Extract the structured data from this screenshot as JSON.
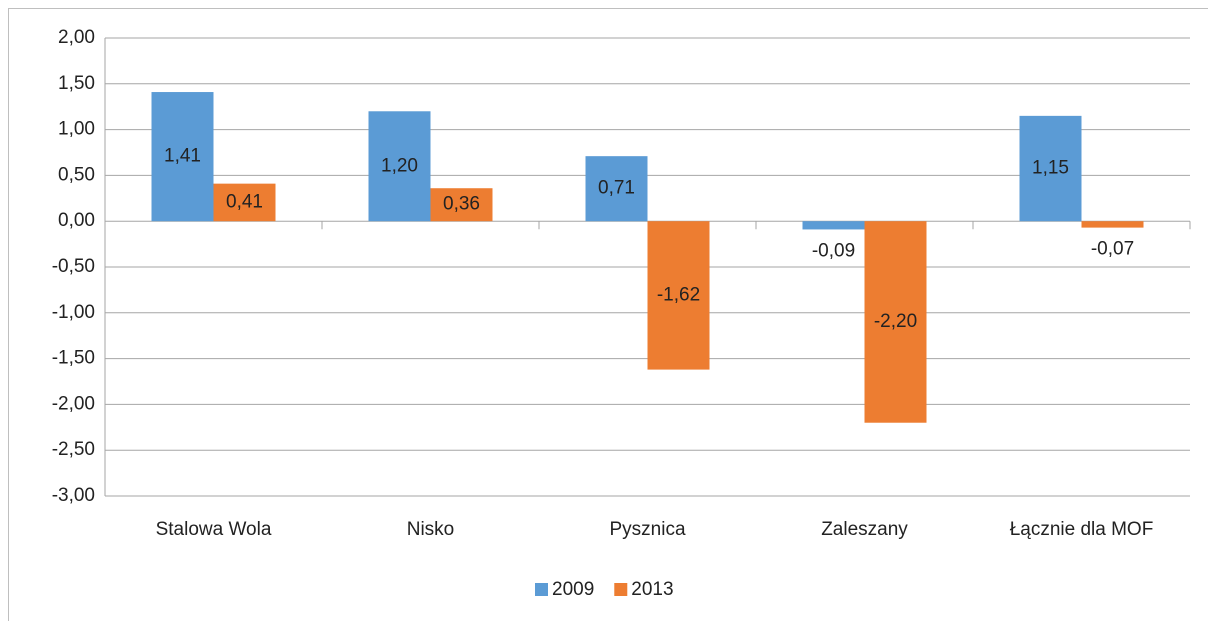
{
  "chart_data": {
    "type": "bar",
    "categories": [
      "Stalowa Wola",
      "Nisko",
      "Pysznica",
      "Zaleszany",
      "Łącznie dla MOF"
    ],
    "series": [
      {
        "name": "2009",
        "color": "#5b9bd5",
        "values": [
          1.41,
          1.2,
          0.71,
          -0.09,
          1.15
        ],
        "value_labels": [
          "1,41",
          "1,20",
          "0,71",
          "-0,09",
          "1,15"
        ]
      },
      {
        "name": "2013",
        "color": "#ed7d31",
        "values": [
          0.41,
          0.36,
          -1.62,
          -2.2,
          -0.07
        ],
        "value_labels": [
          "0,41",
          "0,36",
          "-1,62",
          "-2,20",
          "-0,07"
        ]
      }
    ],
    "ylim": [
      -3,
      2
    ],
    "yticks": [
      {
        "value": -3,
        "label": "-3,00"
      },
      {
        "value": -2.5,
        "label": "-2,50"
      },
      {
        "value": -2,
        "label": "-2,00"
      },
      {
        "value": -1.5,
        "label": "-1,50"
      },
      {
        "value": -1,
        "label": "-1,00"
      },
      {
        "value": -0.5,
        "label": "-0,50"
      },
      {
        "value": 0,
        "label": "0,00"
      },
      {
        "value": 0.5,
        "label": "0,50"
      },
      {
        "value": 1,
        "label": "1,00"
      },
      {
        "value": 1.5,
        "label": "1,50"
      },
      {
        "value": 2,
        "label": "2,00"
      }
    ],
    "grid": true,
    "legend": "bottom"
  }
}
